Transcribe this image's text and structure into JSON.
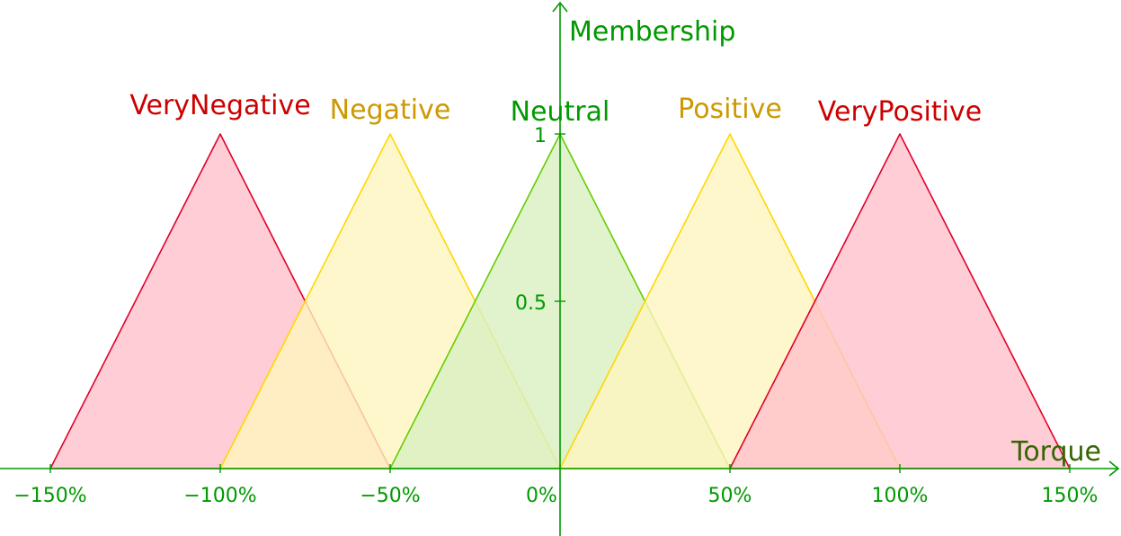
{
  "chart_data": {
    "type": "area",
    "xlabel": "Torque",
    "ylabel": "Membership",
    "xlim": [
      -150,
      150
    ],
    "ylim": [
      0,
      1
    ],
    "x_ticks": [
      "−150%",
      "−100%",
      "−50%",
      "0%",
      "50%",
      "100%",
      "150%"
    ],
    "y_ticks": [
      "0.5",
      "1"
    ],
    "grid": false,
    "series": [
      {
        "name": "VeryNegative",
        "points": [
          [
            -150,
            0
          ],
          [
            -100,
            1
          ],
          [
            -50,
            0
          ]
        ],
        "fill": "#ffc0cb",
        "stroke": "#e0002a",
        "label_color": "#cc0000"
      },
      {
        "name": "Negative",
        "points": [
          [
            -100,
            0
          ],
          [
            -50,
            1
          ],
          [
            0,
            0
          ]
        ],
        "fill": "#fff5bf",
        "stroke": "#ffd700",
        "label_color": "#cc9900"
      },
      {
        "name": "Neutral",
        "points": [
          [
            -50,
            0
          ],
          [
            0,
            1
          ],
          [
            50,
            0
          ]
        ],
        "fill": "#d8f0c0",
        "stroke": "#66cc00",
        "label_color": "#009900"
      },
      {
        "name": "Positive",
        "points": [
          [
            0,
            0
          ],
          [
            50,
            1
          ],
          [
            100,
            0
          ]
        ],
        "fill": "#fff5bf",
        "stroke": "#ffd700",
        "label_color": "#cc9900"
      },
      {
        "name": "VeryPositive",
        "points": [
          [
            50,
            0
          ],
          [
            100,
            1
          ],
          [
            150,
            0
          ]
        ],
        "fill": "#ffc0cb",
        "stroke": "#e0002a",
        "label_color": "#cc0000"
      }
    ],
    "axis_color": "#009900",
    "xlabel_color": "#336600"
  }
}
